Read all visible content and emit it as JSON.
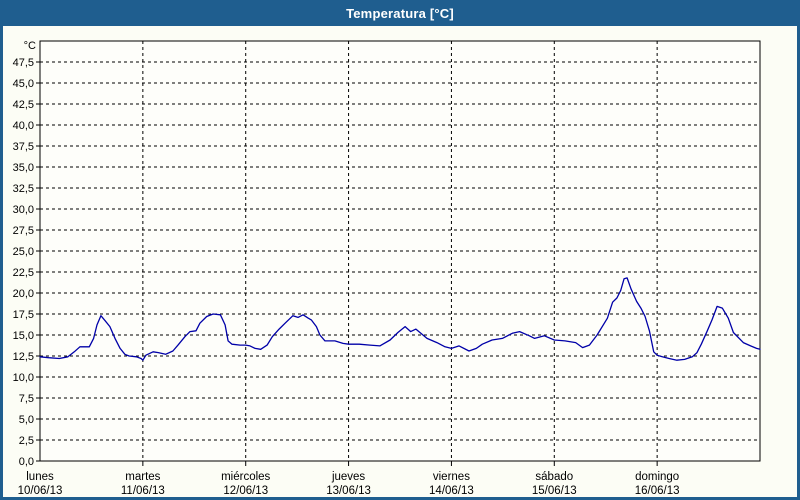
{
  "window": {
    "title": "Temperatura [°C]"
  },
  "colors": {
    "titlebar": "#1f5e8f",
    "line": "#0000a8",
    "grid": "#000000",
    "text": "#000000",
    "window_bg": "#fcfdf5",
    "plot_bg": "#fefefa"
  },
  "chart_data": {
    "type": "line",
    "title": "Temperatura [°C]",
    "unit_label": "°C",
    "legend": "none",
    "grid": "dashed",
    "y_axis": {
      "min": 0,
      "max": 50,
      "tick_step": 2.5,
      "tick_labels_bottom_to_top": [
        "0,0",
        "2,5",
        "5,0",
        "7,5",
        "10,0",
        "12,5",
        "15,0",
        "17,5",
        "20,0",
        "22,5",
        "25,0",
        "27,5",
        "30,0",
        "32,5",
        "35,0",
        "37,5",
        "40,0",
        "42,5",
        "45,0",
        "47,5"
      ]
    },
    "x_axis": {
      "span_hours": 168,
      "days": [
        {
          "name": "lunes",
          "date": "10/06/13"
        },
        {
          "name": "martes",
          "date": "11/06/13"
        },
        {
          "name": "miércoles",
          "date": "12/06/13"
        },
        {
          "name": "jueves",
          "date": "13/06/13"
        },
        {
          "name": "viernes",
          "date": "14/06/13"
        },
        {
          "name": "sábado",
          "date": "15/06/13"
        },
        {
          "name": "domingo",
          "date": "16/06/13"
        }
      ]
    },
    "series": [
      {
        "name": "Temperatura",
        "color": "#0000a8",
        "points_hour_value": [
          [
            0,
            12.4
          ],
          [
            2,
            12.3
          ],
          [
            4.5,
            12.2
          ],
          [
            6.5,
            12.4
          ],
          [
            8,
            13.0
          ],
          [
            9.3,
            13.6
          ],
          [
            11.5,
            13.6
          ],
          [
            12.5,
            14.6
          ],
          [
            13.3,
            16.2
          ],
          [
            14.2,
            17.3
          ],
          [
            15.2,
            16.7
          ],
          [
            16.3,
            16.0
          ],
          [
            17.5,
            14.6
          ],
          [
            18.7,
            13.4
          ],
          [
            19.8,
            12.7
          ],
          [
            20.8,
            12.5
          ],
          [
            22.5,
            12.4
          ],
          [
            23.6,
            12.2
          ],
          [
            24,
            12.0
          ],
          [
            24.7,
            12.6
          ],
          [
            26.4,
            13.0
          ],
          [
            27.6,
            12.9
          ],
          [
            29.3,
            12.7
          ],
          [
            31,
            13.1
          ],
          [
            32.2,
            13.8
          ],
          [
            33.8,
            14.8
          ],
          [
            35,
            15.4
          ],
          [
            36.4,
            15.5
          ],
          [
            37.3,
            16.4
          ],
          [
            38.9,
            17.2
          ],
          [
            40.4,
            17.5
          ],
          [
            42.1,
            17.4
          ],
          [
            43.2,
            16.2
          ],
          [
            43.9,
            14.3
          ],
          [
            44.8,
            13.9
          ],
          [
            46.7,
            13.8
          ],
          [
            48,
            13.8
          ],
          [
            49,
            13.7
          ],
          [
            50.2,
            13.4
          ],
          [
            51.5,
            13.3
          ],
          [
            53,
            13.8
          ],
          [
            54.2,
            14.8
          ],
          [
            55.8,
            15.7
          ],
          [
            57.2,
            16.4
          ],
          [
            59,
            17.3
          ],
          [
            60.2,
            17.1
          ],
          [
            61.4,
            17.4
          ],
          [
            62.6,
            17.0
          ],
          [
            63.3,
            16.8
          ],
          [
            64.5,
            16.0
          ],
          [
            65.3,
            15.0
          ],
          [
            66.5,
            14.3
          ],
          [
            68.8,
            14.3
          ],
          [
            70.7,
            14.0
          ],
          [
            72,
            13.9
          ],
          [
            74.5,
            13.9
          ],
          [
            77,
            13.8
          ],
          [
            79.3,
            13.7
          ],
          [
            81.7,
            14.4
          ],
          [
            83.5,
            15.3
          ],
          [
            85.2,
            16.0
          ],
          [
            86.5,
            15.4
          ],
          [
            87.7,
            15.7
          ],
          [
            90.3,
            14.6
          ],
          [
            92.6,
            14.1
          ],
          [
            94.5,
            13.6
          ],
          [
            96,
            13.4
          ],
          [
            97.8,
            13.7
          ],
          [
            100.1,
            13.1
          ],
          [
            101.8,
            13.4
          ],
          [
            103.2,
            13.9
          ],
          [
            105.5,
            14.4
          ],
          [
            107.9,
            14.6
          ],
          [
            110.2,
            15.2
          ],
          [
            111.9,
            15.4
          ],
          [
            114.2,
            14.9
          ],
          [
            115.4,
            14.6
          ],
          [
            117.7,
            14.9
          ],
          [
            120,
            14.4
          ],
          [
            122.5,
            14.3
          ],
          [
            125,
            14.1
          ],
          [
            126.6,
            13.5
          ],
          [
            128.2,
            13.8
          ],
          [
            130,
            15.0
          ],
          [
            132.4,
            17.0
          ],
          [
            133.6,
            18.9
          ],
          [
            134.6,
            19.4
          ],
          [
            135.5,
            20.3
          ],
          [
            136.3,
            21.7
          ],
          [
            137,
            21.8
          ],
          [
            137.9,
            20.5
          ],
          [
            139.2,
            19.0
          ],
          [
            140.2,
            18.2
          ],
          [
            141.2,
            17.2
          ],
          [
            142.2,
            15.5
          ],
          [
            143.2,
            13.0
          ],
          [
            144,
            12.6
          ],
          [
            145.2,
            12.4
          ],
          [
            146.8,
            12.2
          ],
          [
            148.6,
            12.0
          ],
          [
            150.4,
            12.1
          ],
          [
            152.2,
            12.4
          ],
          [
            153.3,
            12.9
          ],
          [
            154.3,
            13.9
          ],
          [
            155.7,
            15.5
          ],
          [
            156.8,
            16.8
          ],
          [
            158,
            18.4
          ],
          [
            159.2,
            18.2
          ],
          [
            160.6,
            17.0
          ],
          [
            161.8,
            15.3
          ],
          [
            164.1,
            14.1
          ],
          [
            165.8,
            13.7
          ],
          [
            167.2,
            13.4
          ],
          [
            168,
            13.3
          ]
        ]
      }
    ]
  }
}
